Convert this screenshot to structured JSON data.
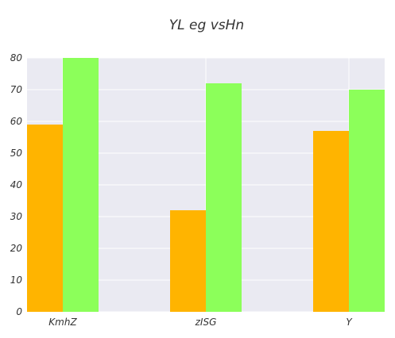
{
  "chart_data": {
    "type": "bar",
    "title": "YL eg vsHn",
    "xlabel": "",
    "ylabel": "",
    "categories": [
      "KmhZ",
      "zISG",
      "Y"
    ],
    "series": [
      {
        "values": [
          59,
          32,
          57
        ],
        "color": "#ffb400"
      },
      {
        "values": [
          80,
          72,
          70
        ],
        "color": "#8cff5a"
      }
    ],
    "ylim": [
      0,
      80
    ],
    "yticks": [
      0,
      10,
      20,
      30,
      40,
      50,
      60,
      70,
      80
    ],
    "grid": true,
    "legend": "none",
    "background_color": "#eaeaf2",
    "grid_color": "#ffffff"
  }
}
